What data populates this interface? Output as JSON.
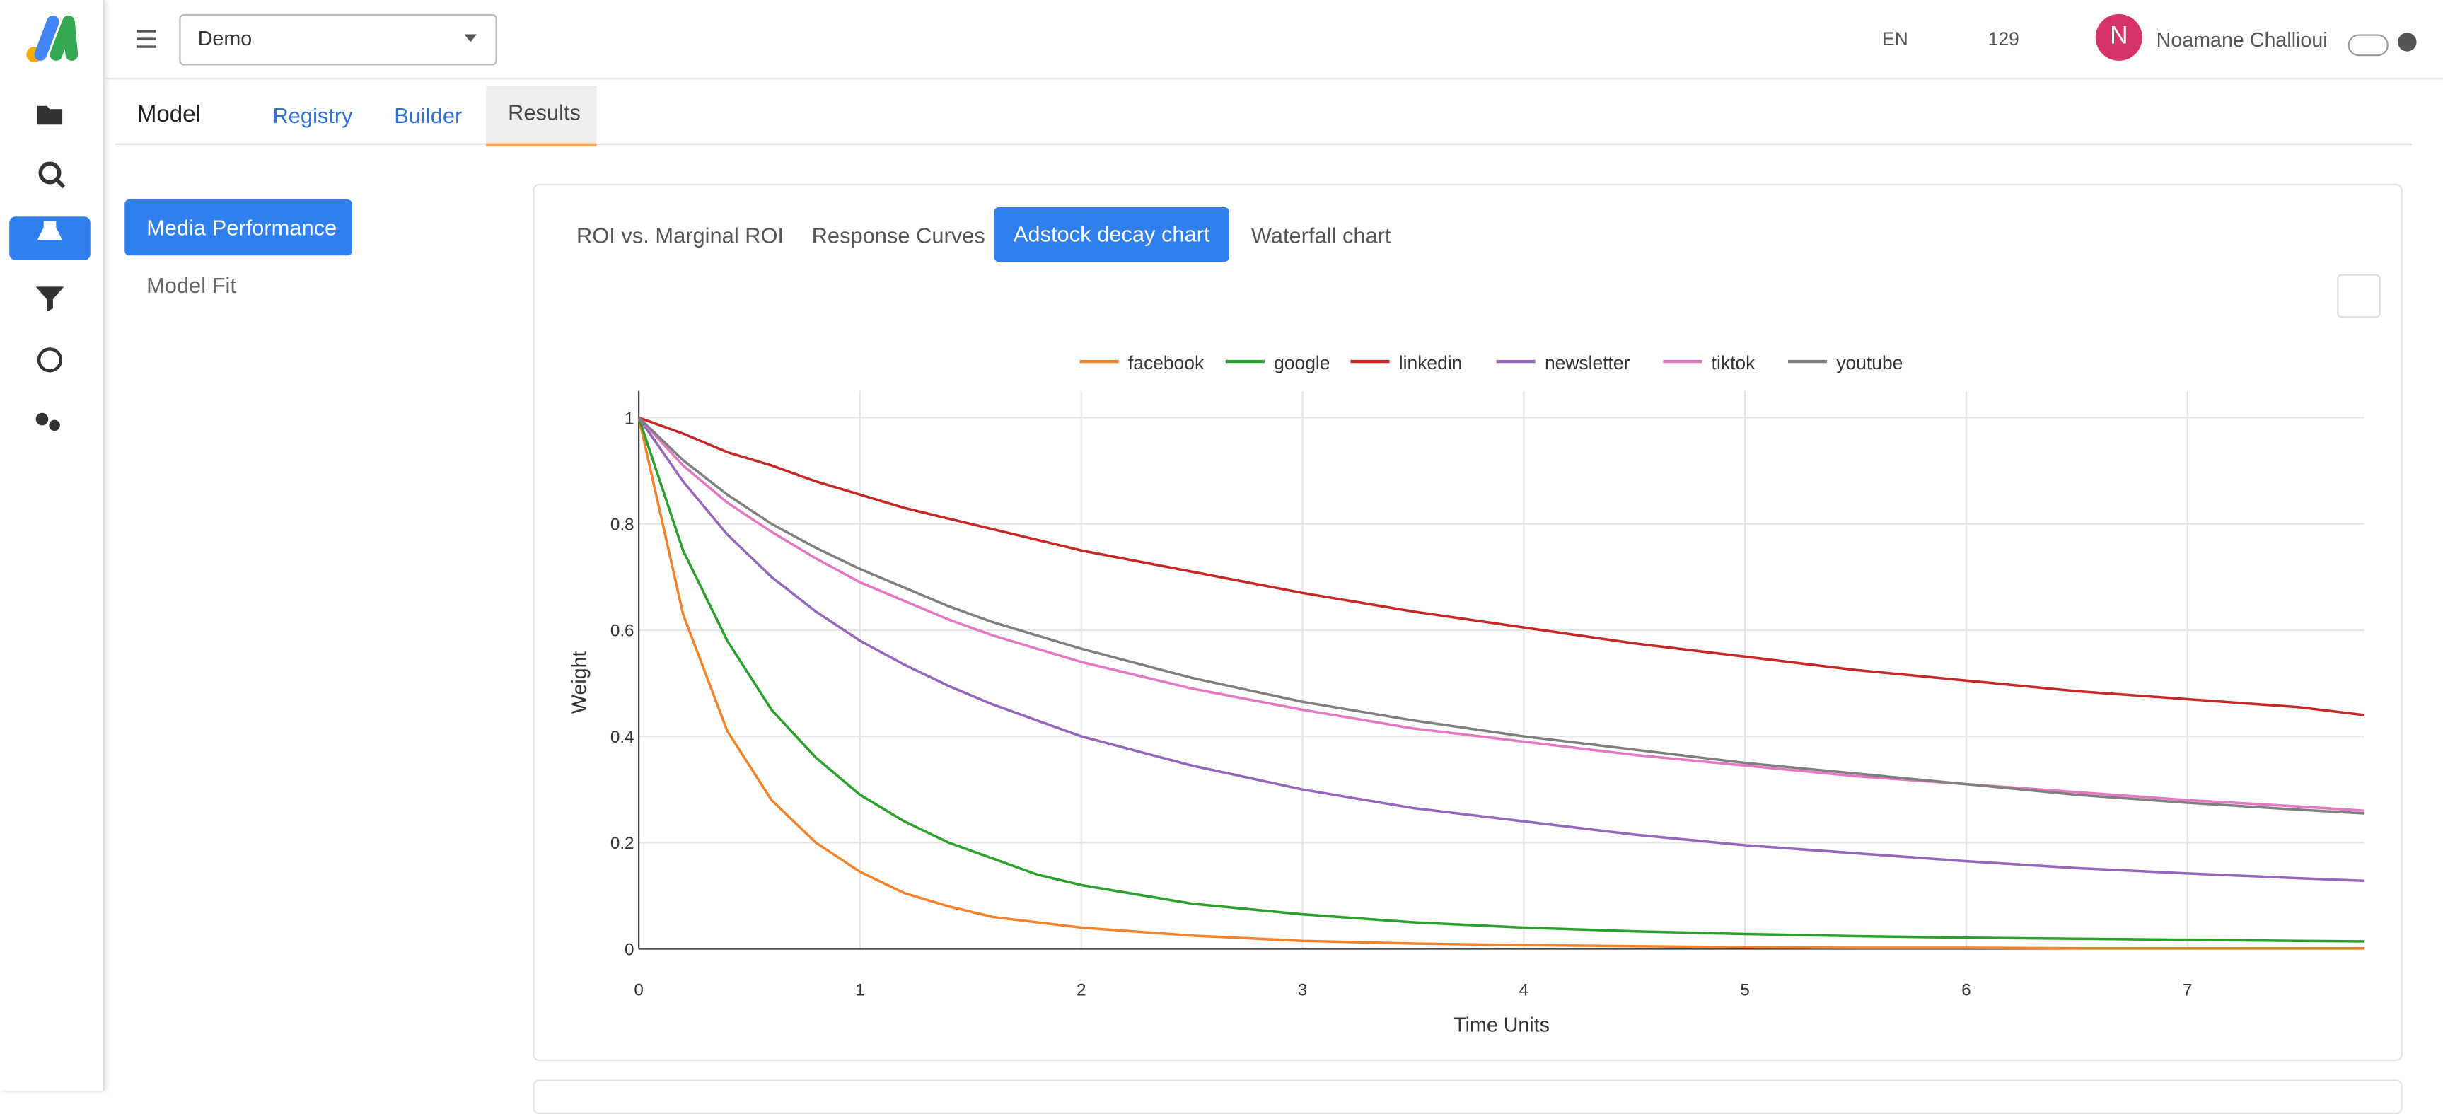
{
  "app": {
    "project": "Demo",
    "language": "EN",
    "count": "129",
    "avatar": "N",
    "user": "Noamane Challioui",
    "tabs": [
      "Model",
      "Registry",
      "Builder",
      "Results"
    ],
    "side_nav": [
      "Media Performance",
      "Model Fit"
    ],
    "chart_tabs": [
      "ROI vs. Marginal ROI",
      "Response Curves",
      "Adstock decay chart",
      "Waterfall chart"
    ]
  },
  "chart_data": {
    "type": "line",
    "x_label": "Time Units",
    "y_label": "Weight",
    "x": [
      0,
      0.2,
      0.4,
      0.6,
      0.8,
      1,
      1.2,
      1.4,
      1.6,
      1.8,
      2,
      2.5,
      3,
      3.5,
      4,
      4.5,
      5,
      5.5,
      6,
      6.5,
      7,
      7.5,
      7.8
    ],
    "series": [
      {
        "name": "facebook",
        "color": "#f5822a",
        "values": [
          1,
          0.63,
          0.41,
          0.28,
          0.2,
          0.145,
          0.105,
          0.08,
          0.06,
          0.05,
          0.04,
          0.025,
          0.015,
          0.01,
          0.007,
          0.005,
          0.003,
          0.002,
          0.002,
          0.001,
          0.001,
          0.001,
          0.001
        ]
      },
      {
        "name": "google",
        "color": "#2ca02c",
        "values": [
          1,
          0.75,
          0.58,
          0.45,
          0.36,
          0.29,
          0.24,
          0.2,
          0.17,
          0.14,
          0.12,
          0.085,
          0.065,
          0.05,
          0.04,
          0.033,
          0.028,
          0.024,
          0.021,
          0.019,
          0.017,
          0.015,
          0.014
        ]
      },
      {
        "name": "linkedin",
        "color": "#c62828",
        "values": [
          1,
          0.97,
          0.935,
          0.91,
          0.88,
          0.855,
          0.83,
          0.81,
          0.79,
          0.77,
          0.75,
          0.71,
          0.67,
          0.635,
          0.605,
          0.575,
          0.55,
          0.525,
          0.505,
          0.485,
          0.47,
          0.455,
          0.44
        ]
      },
      {
        "name": "newsletter",
        "color": "#9467bd",
        "values": [
          1,
          0.88,
          0.78,
          0.7,
          0.635,
          0.58,
          0.535,
          0.495,
          0.46,
          0.43,
          0.4,
          0.345,
          0.3,
          0.265,
          0.24,
          0.215,
          0.195,
          0.18,
          0.165,
          0.152,
          0.142,
          0.133,
          0.128
        ]
      },
      {
        "name": "tiktok",
        "color": "#e377c2",
        "values": [
          1,
          0.91,
          0.84,
          0.785,
          0.735,
          0.69,
          0.655,
          0.62,
          0.59,
          0.565,
          0.54,
          0.49,
          0.45,
          0.415,
          0.39,
          0.365,
          0.345,
          0.325,
          0.31,
          0.295,
          0.28,
          0.268,
          0.26
        ]
      },
      {
        "name": "youtube",
        "color": "#7f7f7f",
        "values": [
          1,
          0.92,
          0.855,
          0.8,
          0.755,
          0.715,
          0.68,
          0.645,
          0.615,
          0.59,
          0.565,
          0.51,
          0.465,
          0.43,
          0.4,
          0.375,
          0.35,
          0.33,
          0.31,
          0.29,
          0.275,
          0.262,
          0.255
        ]
      }
    ],
    "xlim": [
      0,
      7.8
    ],
    "ylim": [
      0,
      1.05
    ],
    "xticks": [
      0,
      1,
      2,
      3,
      4,
      5,
      6,
      7
    ],
    "yticks": [
      0,
      0.2,
      0.4,
      0.6,
      0.8,
      1
    ],
    "grid": true
  }
}
